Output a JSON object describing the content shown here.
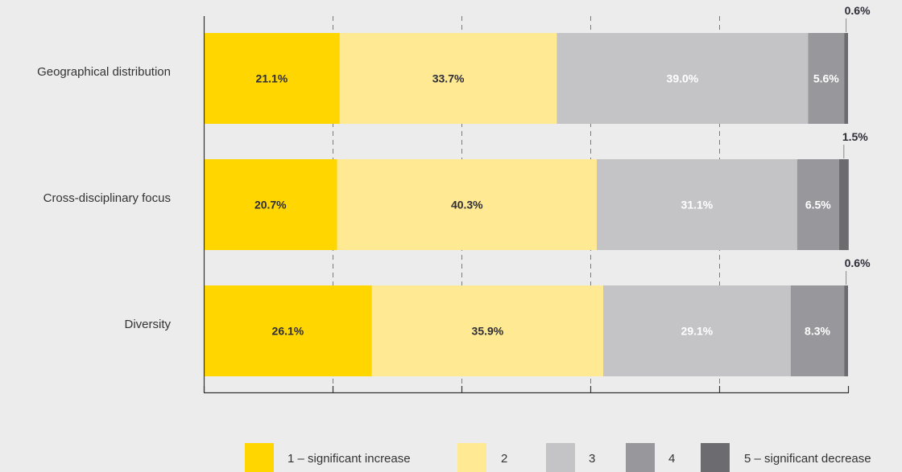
{
  "chart_data": {
    "type": "bar",
    "orientation": "horizontal",
    "stacked": true,
    "title": "",
    "xlabel": "",
    "ylabel": "",
    "xlim": [
      0,
      100
    ],
    "grid": "vertical dashed",
    "legend_position": "bottom",
    "categories": [
      "Geographical distribution",
      "Cross-disciplinary focus",
      "Diversity"
    ],
    "series": [
      {
        "name": "1 – significant increase",
        "color": "#ffd600",
        "label_color": "#2e2e38",
        "values": [
          21.1,
          20.7,
          26.1
        ],
        "labels": [
          "21.1%",
          "20.7%",
          "26.1%"
        ]
      },
      {
        "name": "2",
        "color": "#ffe992",
        "label_color": "#2e2e38",
        "values": [
          33.7,
          40.3,
          35.9
        ],
        "labels": [
          "33.7%",
          "40.3%",
          "35.9%"
        ]
      },
      {
        "name": "3",
        "color": "#c4c4c6",
        "label_color": "#ffffff",
        "values": [
          39.0,
          31.1,
          29.1
        ],
        "labels": [
          "39.0%",
          "31.1%",
          "29.1%"
        ]
      },
      {
        "name": "4",
        "color": "#97979c",
        "label_color": "#ffffff",
        "values": [
          5.6,
          6.5,
          8.3
        ],
        "labels": [
          "5.6%",
          "6.5%",
          "8.3%"
        ]
      },
      {
        "name": "5 – significant decrease",
        "color": "#6c6c70",
        "label_color": "#2e2e38",
        "values": [
          0.6,
          1.5,
          0.6
        ],
        "labels": [
          "0.6%",
          "1.5%",
          "0.6%"
        ]
      }
    ]
  }
}
